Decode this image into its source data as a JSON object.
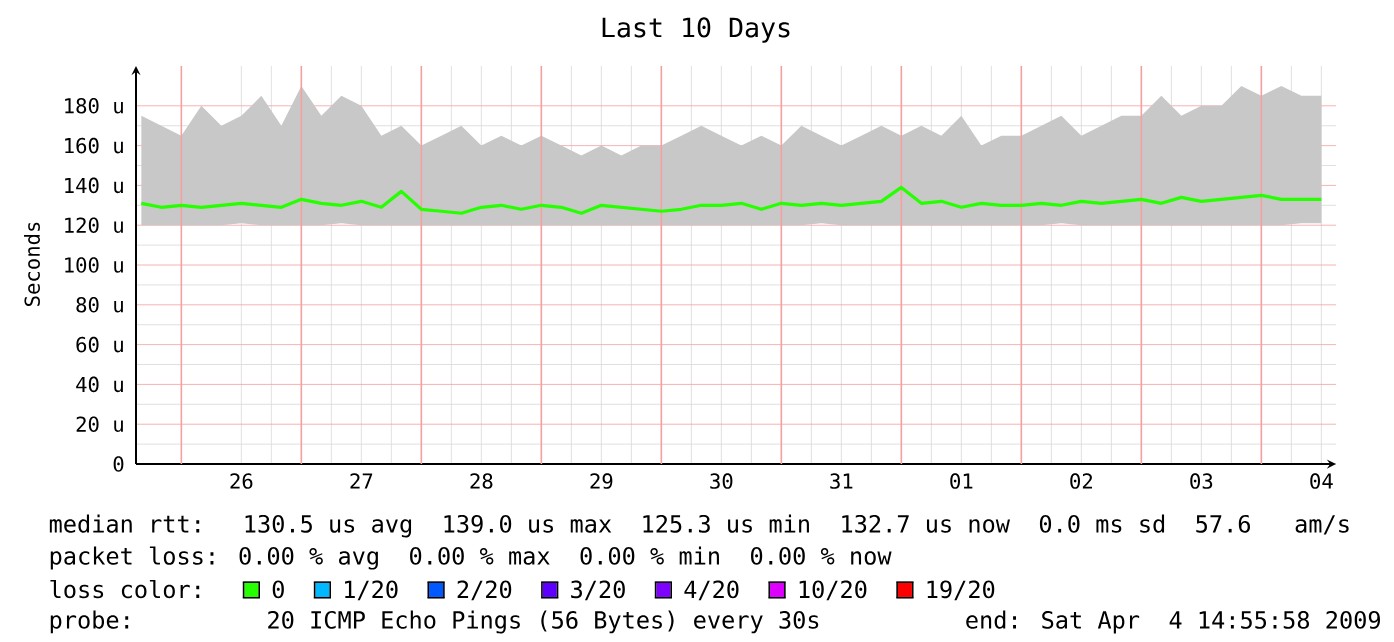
{
  "chart_data": {
    "type": "line",
    "title": "Last 10 Days",
    "ylabel": "Seconds",
    "x": [
      "2009-03-25T16:00",
      "2009-03-25T20:00",
      "2009-03-26T00:00",
      "2009-03-26T04:00",
      "2009-03-26T08:00",
      "2009-03-26T12:00",
      "2009-03-26T16:00",
      "2009-03-26T20:00",
      "2009-03-27T00:00",
      "2009-03-27T04:00",
      "2009-03-27T08:00",
      "2009-03-27T12:00",
      "2009-03-27T16:00",
      "2009-03-27T20:00",
      "2009-03-28T00:00",
      "2009-03-28T04:00",
      "2009-03-28T08:00",
      "2009-03-28T12:00",
      "2009-03-28T16:00",
      "2009-03-28T20:00",
      "2009-03-29T00:00",
      "2009-03-29T04:00",
      "2009-03-29T08:00",
      "2009-03-29T12:00",
      "2009-03-29T16:00",
      "2009-03-29T20:00",
      "2009-03-30T00:00",
      "2009-03-30T04:00",
      "2009-03-30T08:00",
      "2009-03-30T12:00",
      "2009-03-30T16:00",
      "2009-03-30T20:00",
      "2009-03-31T00:00",
      "2009-03-31T04:00",
      "2009-03-31T08:00",
      "2009-03-31T12:00",
      "2009-03-31T16:00",
      "2009-03-31T20:00",
      "2009-04-01T00:00",
      "2009-04-01T04:00",
      "2009-04-01T08:00",
      "2009-04-01T12:00",
      "2009-04-01T16:00",
      "2009-04-01T20:00",
      "2009-04-02T00:00",
      "2009-04-02T04:00",
      "2009-04-02T08:00",
      "2009-04-02T12:00",
      "2009-04-02T16:00",
      "2009-04-02T20:00",
      "2009-04-03T00:00",
      "2009-04-03T04:00",
      "2009-04-03T08:00",
      "2009-04-03T12:00",
      "2009-04-03T16:00",
      "2009-04-03T20:00",
      "2009-04-04T00:00",
      "2009-04-04T04:00",
      "2009-04-04T08:00",
      "2009-04-04T12:00"
    ],
    "series": [
      {
        "name": "0",
        "color": "#26ff00",
        "values": [
          131,
          129,
          130,
          129,
          130,
          131,
          130,
          129,
          133,
          131,
          130,
          132,
          129,
          137,
          128,
          127,
          126,
          129,
          130,
          128,
          130,
          129,
          126,
          130,
          129,
          128,
          127,
          128,
          130,
          130,
          131,
          128,
          131,
          130,
          131,
          130,
          131,
          132,
          139,
          131,
          132,
          129,
          131,
          130,
          130,
          131,
          130,
          132,
          131,
          132,
          133,
          131,
          134,
          132,
          133,
          134,
          135,
          133,
          133,
          133
        ],
        "lower": [
          120,
          120,
          120,
          120,
          120,
          121,
          120,
          120,
          120,
          120,
          121,
          120,
          120,
          120,
          120,
          120,
          120,
          120,
          120,
          120,
          120,
          120,
          120,
          120,
          120,
          120,
          120,
          120,
          120,
          120,
          120,
          120,
          120,
          120,
          121,
          120,
          120,
          120,
          120,
          120,
          120,
          120,
          120,
          120,
          120,
          120,
          121,
          120,
          120,
          120,
          120,
          120,
          120,
          120,
          120,
          120,
          120,
          120,
          121,
          121
        ],
        "upper": [
          175,
          170,
          165,
          180,
          170,
          175,
          185,
          170,
          190,
          175,
          185,
          180,
          165,
          170,
          160,
          165,
          170,
          160,
          165,
          160,
          165,
          160,
          155,
          160,
          155,
          160,
          160,
          165,
          170,
          165,
          160,
          165,
          160,
          170,
          165,
          160,
          165,
          170,
          165,
          170,
          165,
          175,
          160,
          165,
          165,
          170,
          175,
          165,
          170,
          175,
          175,
          185,
          175,
          180,
          180,
          190,
          185,
          190,
          185,
          185
        ]
      },
      {
        "name": "1/20",
        "color": "#00b8ff",
        "values": [
          null,
          null,
          null,
          null,
          null,
          null,
          null,
          null,
          null,
          null,
          null,
          null,
          null,
          null,
          null,
          null,
          null,
          null,
          null,
          null,
          null,
          null,
          null,
          null,
          null,
          null,
          null,
          null,
          null,
          null,
          null,
          null,
          null,
          null,
          null,
          null,
          null,
          null,
          null,
          null,
          null,
          null,
          null,
          null,
          null,
          null,
          null,
          null,
          null,
          null,
          null,
          null,
          null,
          null,
          null,
          null,
          null,
          null,
          null,
          null
        ]
      },
      {
        "name": "2/20",
        "color": "#0059ff",
        "values": [
          null,
          null,
          null,
          null,
          null,
          null,
          null,
          null,
          null,
          null,
          null,
          null,
          null,
          null,
          null,
          null,
          null,
          null,
          null,
          null,
          null,
          null,
          null,
          null,
          null,
          null,
          null,
          null,
          null,
          null,
          null,
          null,
          null,
          null,
          null,
          null,
          null,
          null,
          null,
          null,
          null,
          null,
          null,
          null,
          null,
          null,
          null,
          null,
          null,
          null,
          null,
          null,
          null,
          null,
          null,
          null,
          null,
          null,
          null,
          null
        ]
      },
      {
        "name": "3/20",
        "color": "#5e00ff",
        "values": [
          null,
          null,
          null,
          null,
          null,
          null,
          null,
          null,
          null,
          null,
          null,
          null,
          null,
          null,
          null,
          null,
          null,
          null,
          null,
          null,
          null,
          null,
          null,
          null,
          null,
          null,
          null,
          null,
          null,
          null,
          null,
          null,
          null,
          null,
          null,
          null,
          null,
          null,
          null,
          null,
          null,
          null,
          null,
          null,
          null,
          null,
          null,
          null,
          null,
          null,
          null,
          null,
          null,
          null,
          null,
          null,
          null,
          null,
          null,
          null
        ]
      },
      {
        "name": "4/20",
        "color": "#7e00ff",
        "values": [
          null,
          null,
          null,
          null,
          null,
          null,
          null,
          null,
          null,
          null,
          null,
          null,
          null,
          null,
          null,
          null,
          null,
          null,
          null,
          null,
          null,
          null,
          null,
          null,
          null,
          null,
          null,
          null,
          null,
          null,
          null,
          null,
          null,
          null,
          null,
          null,
          null,
          null,
          null,
          null,
          null,
          null,
          null,
          null,
          null,
          null,
          null,
          null,
          null,
          null,
          null,
          null,
          null,
          null,
          null,
          null,
          null,
          null,
          null,
          null
        ]
      },
      {
        "name": "10/20",
        "color": "#dd00ff",
        "values": [
          null,
          null,
          null,
          null,
          null,
          null,
          null,
          null,
          null,
          null,
          null,
          null,
          null,
          null,
          null,
          null,
          null,
          null,
          null,
          null,
          null,
          null,
          null,
          null,
          null,
          null,
          null,
          null,
          null,
          null,
          null,
          null,
          null,
          null,
          null,
          null,
          null,
          null,
          null,
          null,
          null,
          null,
          null,
          null,
          null,
          null,
          null,
          null,
          null,
          null,
          null,
          null,
          null,
          null,
          null,
          null,
          null,
          null,
          null,
          null
        ]
      },
      {
        "name": "19/20",
        "color": "#ff0000",
        "values": [
          null,
          null,
          null,
          null,
          null,
          null,
          null,
          null,
          null,
          null,
          null,
          null,
          null,
          null,
          null,
          null,
          null,
          null,
          null,
          null,
          null,
          null,
          null,
          null,
          null,
          null,
          null,
          null,
          null,
          null,
          null,
          null,
          null,
          null,
          null,
          null,
          null,
          null,
          null,
          null,
          null,
          null,
          null,
          null,
          null,
          null,
          null,
          null,
          null,
          null,
          null,
          null,
          null,
          null,
          null,
          null,
          null,
          null,
          null,
          null
        ]
      }
    ],
    "legend": "bottom",
    "legend_title": "loss color:",
    "xlim": [
      "2009-03-25T14:56",
      "2009-04-04T14:56"
    ],
    "xticks": [
      {
        "value": "2009-03-26T12:00",
        "label": "26"
      },
      {
        "value": "2009-03-27T12:00",
        "label": "27"
      },
      {
        "value": "2009-03-28T12:00",
        "label": "28"
      },
      {
        "value": "2009-03-29T12:00",
        "label": "29"
      },
      {
        "value": "2009-03-30T12:00",
        "label": "30"
      },
      {
        "value": "2009-03-31T12:00",
        "label": "31"
      },
      {
        "value": "2009-04-01T12:00",
        "label": "01"
      },
      {
        "value": "2009-04-02T12:00",
        "label": "02"
      },
      {
        "value": "2009-04-03T12:00",
        "label": "03"
      },
      {
        "value": "2009-04-04T12:00",
        "label": "04"
      }
    ],
    "ylim": [
      0,
      200
    ],
    "yticks": [
      0,
      {
        "value": 20,
        "label": "20 u"
      },
      {
        "value": 40,
        "label": "40 u"
      },
      {
        "value": 60,
        "label": "60 u"
      },
      {
        "value": 80,
        "label": "80 u"
      },
      {
        "value": 100,
        "label": "100 u"
      },
      {
        "value": 120,
        "label": "120 u"
      },
      {
        "value": 140,
        "label": "140 u"
      },
      {
        "value": 160,
        "label": "160 u"
      },
      {
        "value": 180,
        "label": "180 u"
      }
    ],
    "grid": true,
    "ref_lines": [
      {
        "axis": "x",
        "value": "2009-03-26T00:00",
        "color": "#f4a0a0"
      },
      {
        "axis": "x",
        "value": "2009-03-27T00:00",
        "color": "#f4a0a0"
      },
      {
        "axis": "x",
        "value": "2009-03-28T00:00",
        "color": "#f4a0a0"
      },
      {
        "axis": "x",
        "value": "2009-03-29T00:00",
        "color": "#f4a0a0"
      },
      {
        "axis": "x",
        "value": "2009-03-30T00:00",
        "color": "#f4a0a0"
      },
      {
        "axis": "x",
        "value": "2009-03-31T00:00",
        "color": "#f4a0a0"
      },
      {
        "axis": "x",
        "value": "2009-04-01T00:00",
        "color": "#f4a0a0"
      },
      {
        "axis": "x",
        "value": "2009-04-02T00:00",
        "color": "#f4a0a0"
      },
      {
        "axis": "x",
        "value": "2009-04-03T00:00",
        "color": "#f4a0a0"
      },
      {
        "axis": "x",
        "value": "2009-04-04T00:00",
        "color": "#f4a0a0"
      }
    ],
    "annotations": [
      "median rtt:  130.5 us avg  139.0 us max  125.3 us min  132.7 us now  0.0 ms sd  57.6   am/s",
      "packet loss: 0.00 % avg  0.00 % max  0.00 % min  0.00 % now",
      "probe:       20 ICMP Echo Pings (56 Bytes) every 30s",
      "end: Sat Apr  4 14:55:58 2009"
    ]
  }
}
